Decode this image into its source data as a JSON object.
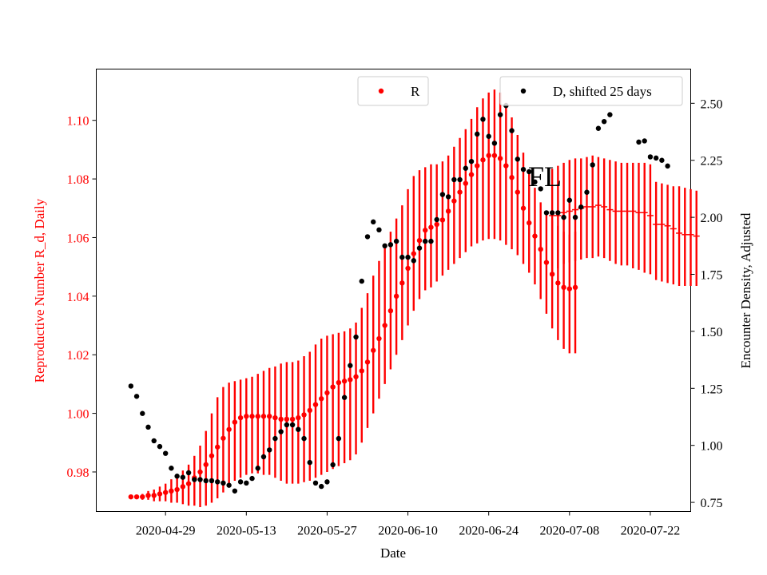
{
  "chart_data": {
    "type": "scatter",
    "annotation": "FL",
    "xlabel": "Date",
    "y_left_label": "Reproductive Number R_d, Daily",
    "y_right_label": "Encounter Density, Adjusted",
    "x_ticks": [
      "2020-04-29",
      "2020-05-13",
      "2020-05-27",
      "2020-06-10",
      "2020-06-24",
      "2020-07-08",
      "2020-07-22"
    ],
    "x_range": [
      "2020-04-17",
      "2020-07-29"
    ],
    "y_left_range": [
      0.9665,
      1.1175
    ],
    "y_left_ticks": [
      "0.98",
      "1.00",
      "1.02",
      "1.04",
      "1.06",
      "1.08",
      "1.10"
    ],
    "y_right_range": [
      0.71,
      2.65
    ],
    "y_right_ticks": [
      "0.75",
      "1.00",
      "1.25",
      "1.50",
      "1.75",
      "2.00",
      "2.25",
      "2.50"
    ],
    "colors": {
      "R": "#ff0000",
      "D": "#000000",
      "left_axis_text": "#ff0000"
    },
    "legend_left": {
      "label": "R",
      "placement": "upper-center"
    },
    "legend_right": {
      "label": "D, shifted 25 days",
      "placement": "upper-right"
    },
    "series_R": {
      "name": "R",
      "start_date": "2020-04-23",
      "values": [
        0.9715,
        0.9715,
        0.9715,
        0.972,
        0.972,
        0.9725,
        0.973,
        0.9735,
        0.974,
        0.975,
        0.976,
        0.978,
        0.98,
        0.9825,
        0.9855,
        0.9885,
        0.9915,
        0.9945,
        0.997,
        0.9985,
        0.999,
        0.999,
        0.999,
        0.999,
        0.999,
        0.9985,
        0.998,
        0.998,
        0.998,
        0.9985,
        0.9995,
        1.001,
        1.003,
        1.005,
        1.007,
        1.009,
        1.0105,
        1.011,
        1.0115,
        1.0125,
        1.0145,
        1.0175,
        1.0215,
        1.0255,
        1.03,
        1.035,
        1.04,
        1.0445,
        1.0495,
        1.0545,
        1.059,
        1.0625,
        1.0635,
        1.0645,
        1.066,
        1.069,
        1.0725,
        1.0755,
        1.0785,
        1.0815,
        1.0845,
        1.0865,
        1.088,
        1.088,
        1.087,
        1.0845,
        1.0805,
        1.0755,
        1.07,
        1.065,
        1.0605,
        1.056,
        1.0515,
        1.0475,
        1.0445,
        1.043,
        1.0425,
        1.043
      ],
      "err_lo": [
        0.971,
        0.971,
        0.9705,
        0.9705,
        0.97,
        0.97,
        0.97,
        0.9695,
        0.9695,
        0.969,
        0.9685,
        0.9685,
        0.968,
        0.9685,
        0.9695,
        0.971,
        0.973,
        0.975,
        0.977,
        0.978,
        0.979,
        0.9795,
        0.9795,
        0.979,
        0.979,
        0.978,
        0.977,
        0.976,
        0.976,
        0.976,
        0.9765,
        0.977,
        0.978,
        0.979,
        0.98,
        0.981,
        0.982,
        0.983,
        0.984,
        0.986,
        0.99,
        0.995,
        1.0,
        1.005,
        1.01,
        1.015,
        1.02,
        1.025,
        1.03,
        1.035,
        1.039,
        1.042,
        1.043,
        1.045,
        1.047,
        1.049,
        1.051,
        1.053,
        1.055,
        1.057,
        1.058,
        1.059,
        1.0595,
        1.0595,
        1.059,
        1.0575,
        1.056,
        1.054,
        1.051,
        1.048,
        1.044,
        1.039,
        1.034,
        1.029,
        1.025,
        1.022,
        1.0205,
        1.0205
      ],
      "err_hi": [
        0.972,
        0.972,
        0.9725,
        0.9735,
        0.974,
        0.975,
        0.976,
        0.9775,
        0.9785,
        0.9805,
        0.9825,
        0.9855,
        0.989,
        0.994,
        1.0,
        1.0055,
        1.009,
        1.0105,
        1.011,
        1.0115,
        1.012,
        1.0125,
        1.0135,
        1.0145,
        1.0155,
        1.016,
        1.017,
        1.0175,
        1.0175,
        1.018,
        1.0195,
        1.021,
        1.0235,
        1.0255,
        1.0265,
        1.027,
        1.0275,
        1.028,
        1.029,
        1.031,
        1.036,
        1.041,
        1.047,
        1.052,
        1.057,
        1.062,
        1.0665,
        1.071,
        1.0765,
        1.081,
        1.083,
        1.084,
        1.085,
        1.085,
        1.086,
        1.088,
        1.091,
        1.094,
        1.097,
        1.1005,
        1.1045,
        1.1075,
        1.1095,
        1.1105,
        1.1095,
        1.106,
        1.101,
        1.095,
        1.089,
        1.083,
        1.077,
        1.072,
        1.069,
        1.066,
        1.064,
        1.062,
        1.061,
        1.062
      ]
    },
    "series_R_late": {
      "name": "R",
      "start_date": "2020-07-05",
      "values": [
        1.0675,
        1.0675,
        1.0685,
        1.069,
        1.0695,
        1.07,
        1.0705,
        1.0705,
        1.071,
        1.0705,
        1.0695,
        1.069,
        1.069,
        1.069,
        1.069,
        1.0685,
        1.0685,
        1.0675,
        1.0645,
        1.0645,
        1.064,
        1.063,
        1.0615,
        1.061,
        1.061,
        1.0605
      ],
      "err_lo": [
        1.0485,
        1.0495,
        1.051,
        1.0515,
        1.052,
        1.0525,
        1.053,
        1.053,
        1.0535,
        1.053,
        1.052,
        1.051,
        1.0505,
        1.0505,
        1.0495,
        1.049,
        1.048,
        1.0475,
        1.0455,
        1.045,
        1.0445,
        1.044,
        1.0435,
        1.0435,
        1.0435,
        1.0435
      ],
      "err_hi": [
        1.0835,
        1.0845,
        1.0855,
        1.0865,
        1.087,
        1.087,
        1.0875,
        1.088,
        1.0875,
        1.087,
        1.0865,
        1.086,
        1.0855,
        1.0855,
        1.0855,
        1.0855,
        1.0855,
        1.085,
        1.079,
        1.0785,
        1.078,
        1.0775,
        1.0775,
        1.077,
        1.0765,
        1.076
      ]
    },
    "series_D": {
      "name": "D, shifted 25 days",
      "start_date": "2020-04-23",
      "values": [
        1.26,
        1.215,
        1.14,
        1.08,
        1.02,
        0.995,
        0.965,
        0.9,
        0.865,
        0.86,
        0.88,
        0.85,
        0.85,
        0.845,
        0.845,
        0.84,
        0.835,
        0.825,
        0.8,
        0.84,
        0.835,
        0.855,
        0.9,
        0.95,
        0.98,
        1.03,
        1.06,
        1.09,
        1.09,
        1.07,
        1.03,
        0.925,
        0.835,
        0.82,
        0.84,
        0.915,
        1.03,
        1.21,
        1.35,
        1.475,
        1.72,
        1.915,
        1.98,
        1.945,
        1.875,
        1.88,
        1.895,
        1.825,
        1.825,
        1.81,
        1.865,
        1.895,
        1.895,
        1.99,
        2.1,
        2.09,
        2.165,
        2.165,
        2.215,
        2.245,
        2.365,
        2.43,
        2.355,
        2.325,
        2.45,
        2.49,
        2.38,
        2.255,
        2.21,
        2.2,
        2.155,
        2.125,
        2.02,
        2.02,
        2.02,
        2.0,
        2.075,
        2.0,
        2.045,
        2.11,
        2.23,
        2.39,
        2.42,
        2.45
      ],
      "late_start_date": "2020-07-20",
      "late_values": [
        2.33,
        2.335,
        2.265,
        2.26,
        2.25,
        2.225
      ]
    }
  }
}
